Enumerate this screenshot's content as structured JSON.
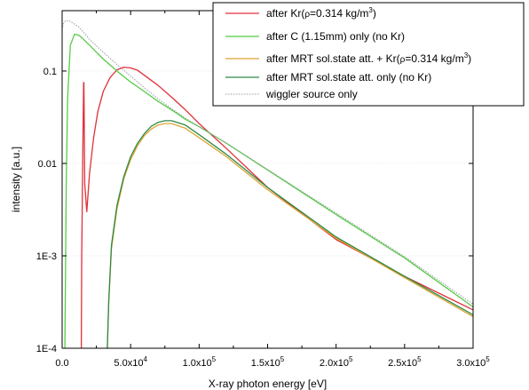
{
  "chart_data": {
    "type": "line",
    "xlabel": "X-ray photon energy [eV]",
    "ylabel": "intensity [a.u.]",
    "xscale": "linear",
    "yscale": "log",
    "xlim": [
      0,
      300000
    ],
    "ylim": [
      0.0001,
      0.45
    ],
    "legend_position": "top-right",
    "x_ticks": [
      {
        "value": 0,
        "label": "0.0",
        "mant": "0.0",
        "exp": ""
      },
      {
        "value": 50000,
        "label": "5.0x10^4",
        "mant": "5.0x10",
        "exp": "4"
      },
      {
        "value": 100000,
        "label": "1.0x10^5",
        "mant": "1.0x10",
        "exp": "5"
      },
      {
        "value": 150000,
        "label": "1.5x10^5",
        "mant": "1.5x10",
        "exp": "5"
      },
      {
        "value": 200000,
        "label": "2.0x10^5",
        "mant": "2.0x10",
        "exp": "5"
      },
      {
        "value": 250000,
        "label": "2.5x10^5",
        "mant": "2.5x10",
        "exp": "5"
      },
      {
        "value": 300000,
        "label": "3.0x10^5",
        "mant": "3.0x10",
        "exp": "5"
      }
    ],
    "y_ticks": [
      {
        "value": 0.0001,
        "label": "1E-4"
      },
      {
        "value": 0.001,
        "label": "1E-3"
      },
      {
        "value": 0.01,
        "label": "0.01"
      },
      {
        "value": 0.1,
        "label": "0.1"
      }
    ],
    "series": [
      {
        "name": "after Kr(ρ=0.314 kg/m3)",
        "color": "#e0303a",
        "dash": "",
        "x": [
          14000,
          14300,
          15000,
          15500,
          15700,
          15900,
          16500,
          18000,
          20000,
          23000,
          26000,
          30000,
          35000,
          40000,
          45000,
          50000,
          55000,
          60000,
          70000,
          80000,
          90000,
          100000,
          120000,
          150000,
          200000,
          250000,
          300000
        ],
        "y": [
          0.0001,
          0.001,
          0.01,
          0.045,
          0.075,
          0.075,
          0.006,
          0.003,
          0.0078,
          0.019,
          0.036,
          0.06,
          0.085,
          0.103,
          0.11,
          0.108,
          0.102,
          0.09,
          0.07,
          0.052,
          0.038,
          0.027,
          0.0145,
          0.0055,
          0.0015,
          0.0006,
          0.00026
        ]
      },
      {
        "name": "after C (1.15mm) only (no Kr)",
        "color": "#55cc44",
        "dash": "",
        "x": [
          2000,
          3000,
          4000,
          6000,
          9000,
          12000,
          15000,
          20000,
          25000,
          30000,
          40000,
          50000,
          60000,
          70000,
          80000,
          90000,
          100000,
          120000,
          150000,
          200000,
          250000,
          300000
        ],
        "y": [
          0.0001,
          0.006,
          0.05,
          0.19,
          0.25,
          0.245,
          0.225,
          0.19,
          0.16,
          0.135,
          0.1,
          0.076,
          0.06,
          0.047,
          0.038,
          0.03,
          0.025,
          0.0165,
          0.0085,
          0.0028,
          0.00095,
          0.00028
        ]
      },
      {
        "name": "after MRT sol.state att. + Kr(ρ=0.314 kg/m3)",
        "color": "#dda535",
        "dash": "",
        "x": [
          33000,
          34000,
          36000,
          40000,
          45000,
          50000,
          55000,
          60000,
          65000,
          70000,
          75000,
          80000,
          90000,
          100000,
          120000,
          150000,
          200000,
          250000,
          300000
        ],
        "y": [
          0.0001,
          0.0003,
          0.0012,
          0.0032,
          0.0068,
          0.011,
          0.0155,
          0.02,
          0.0235,
          0.026,
          0.027,
          0.027,
          0.024,
          0.019,
          0.0118,
          0.0052,
          0.00155,
          0.00058,
          0.00022
        ]
      },
      {
        "name": "after MRT sol.state att. only (no Kr)",
        "color": "#2f8a44",
        "dash": "",
        "x": [
          33000,
          34000,
          36000,
          40000,
          45000,
          50000,
          55000,
          60000,
          65000,
          70000,
          75000,
          80000,
          90000,
          100000,
          120000,
          150000,
          200000,
          250000,
          300000
        ],
        "y": [
          0.0001,
          0.00032,
          0.0013,
          0.0035,
          0.0072,
          0.0118,
          0.0165,
          0.021,
          0.0252,
          0.0278,
          0.029,
          0.029,
          0.026,
          0.0205,
          0.0125,
          0.0055,
          0.0016,
          0.0006,
          0.00023
        ]
      },
      {
        "name": "wiggler source only",
        "color": "#9a9aa8",
        "dash": "1.5,1.5",
        "x": [
          300,
          1000,
          2500,
          5000,
          8000,
          12000,
          16000,
          20000,
          30000,
          40000,
          50000,
          60000,
          70000,
          80000,
          90000,
          100000,
          120000,
          150000,
          200000,
          250000,
          300000
        ],
        "y": [
          0.3,
          0.33,
          0.35,
          0.35,
          0.33,
          0.3,
          0.26,
          0.22,
          0.16,
          0.118,
          0.088,
          0.066,
          0.05,
          0.039,
          0.031,
          0.025,
          0.0165,
          0.0086,
          0.0029,
          0.00098,
          0.0003
        ]
      }
    ],
    "legend": [
      {
        "text": "after Kr(",
        "rho": "ρ",
        "rest": "=0.314 kg/m",
        "sup": "3",
        "close": ")"
      },
      {
        "text": "after C (1.15mm) only (no Kr)",
        "rho": "",
        "rest": "",
        "sup": "",
        "close": ""
      },
      {
        "text": "after MRT sol.state att. + Kr(",
        "rho": "ρ",
        "rest": "=0.314 kg/m",
        "sup": "3",
        "close": ")"
      },
      {
        "text": "after MRT sol.state att. only (no Kr)",
        "rho": "",
        "rest": "",
        "sup": "",
        "close": ""
      },
      {
        "text": "wiggler source only",
        "rho": "",
        "rest": "",
        "sup": "",
        "close": ""
      }
    ]
  }
}
